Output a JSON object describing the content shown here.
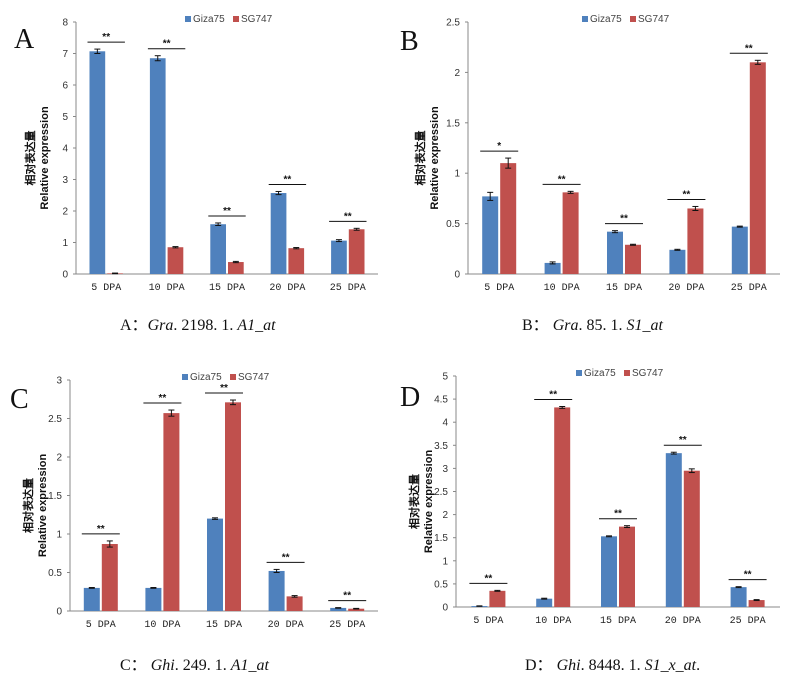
{
  "series_colors": {
    "Giza75": "#4f81bd",
    "SG747": "#c0504d"
  },
  "chart_data": [
    {
      "panel": "A",
      "type": "bar",
      "categories": [
        "5 DPA",
        "10 DPA",
        "15 DPA",
        "20 DPA",
        "25 DPA"
      ],
      "series": [
        {
          "name": "Giza75",
          "values": [
            7.07,
            6.85,
            1.58,
            2.57,
            1.06
          ],
          "errors": [
            0.07,
            0.08,
            0.04,
            0.05,
            0.03
          ]
        },
        {
          "name": "SG747",
          "values": [
            0.02,
            0.85,
            0.38,
            0.82,
            1.42
          ],
          "errors": [
            0.01,
            0.02,
            0.02,
            0.02,
            0.03
          ]
        }
      ],
      "significance": [
        "**",
        "**",
        "**",
        "**",
        "**"
      ],
      "ylabel_cn": "相对表达量",
      "ylabel_en": "Relative expression",
      "ylim": [
        0,
        8
      ],
      "yticks": [
        0,
        1,
        2,
        3,
        4,
        5,
        6,
        7,
        8
      ],
      "ytick_labels": [
        "0",
        "1",
        "2",
        "3",
        "4",
        "5",
        "6",
        "7",
        "8"
      ],
      "legend": "top",
      "grid": false,
      "caption": {
        "prefix": "A：",
        "name": "Gra",
        "middle": ". 2198. 1. ",
        "suffix_it": "A1_at",
        "tail": ""
      }
    },
    {
      "panel": "B",
      "type": "bar",
      "categories": [
        "5 DPA",
        "10 DPA",
        "15 DPA",
        "20 DPA",
        "25 DPA"
      ],
      "series": [
        {
          "name": "Giza75",
          "values": [
            0.77,
            0.11,
            0.42,
            0.24,
            0.47
          ],
          "errors": [
            0.04,
            0.01,
            0.01,
            0.005,
            0.005
          ]
        },
        {
          "name": "SG747",
          "values": [
            1.1,
            0.81,
            0.29,
            0.65,
            2.1
          ],
          "errors": [
            0.05,
            0.01,
            0.005,
            0.02,
            0.02
          ]
        }
      ],
      "significance": [
        "*",
        "**",
        "**",
        "**",
        "**"
      ],
      "ylabel_cn": "相对表达量",
      "ylabel_en": "Relative expression",
      "ylim": [
        0,
        2.5
      ],
      "yticks": [
        0,
        0.5,
        1,
        1.5,
        2,
        2.5
      ],
      "ytick_labels": [
        "0",
        "0.5",
        "1",
        "1.5",
        "2",
        "2.5"
      ],
      "legend": "top",
      "grid": false,
      "caption": {
        "prefix": "B： ",
        "name": "Gra",
        "middle": ". 85. 1. ",
        "suffix_it": "S1_at",
        "tail": ""
      }
    },
    {
      "panel": "C",
      "type": "bar",
      "categories": [
        "5 DPA",
        "10 DPA",
        "15 DPA",
        "20 DPA",
        "25 DPA"
      ],
      "series": [
        {
          "name": "Giza75",
          "values": [
            0.3,
            0.3,
            1.2,
            0.52,
            0.04
          ],
          "errors": [
            0.005,
            0.005,
            0.01,
            0.02,
            0.004
          ]
        },
        {
          "name": "SG747",
          "values": [
            0.87,
            2.57,
            2.71,
            0.19,
            0.03
          ],
          "errors": [
            0.04,
            0.04,
            0.03,
            0.01,
            0.004
          ]
        }
      ],
      "significance": [
        "**",
        "**",
        "**",
        "**",
        "**"
      ],
      "ylabel_cn": "相对表达量",
      "ylabel_en": "Relative expression",
      "ylim": [
        0,
        3
      ],
      "yticks": [
        0,
        0.5,
        1,
        1.5,
        2,
        2.5,
        3
      ],
      "ytick_labels": [
        "0",
        "0.5",
        "1",
        "1.5",
        "2",
        "2.5",
        "3"
      ],
      "legend": "top",
      "grid": false,
      "caption": {
        "prefix": "C： ",
        "name": "Ghi",
        "middle": ". 249. 1. ",
        "suffix_it": "A1_at",
        "tail": ""
      }
    },
    {
      "panel": "D",
      "type": "bar",
      "categories": [
        "5 DPA",
        "10 DPA",
        "15 DPA",
        "20 DPA",
        "25 DPA"
      ],
      "series": [
        {
          "name": "Giza75",
          "values": [
            0.02,
            0.18,
            1.53,
            3.33,
            0.43
          ],
          "errors": [
            0.005,
            0.01,
            0.01,
            0.02,
            0.01
          ]
        },
        {
          "name": "SG747",
          "values": [
            0.35,
            4.32,
            1.74,
            2.95,
            0.15
          ],
          "errors": [
            0.01,
            0.02,
            0.02,
            0.04,
            0.01
          ]
        }
      ],
      "significance": [
        "**",
        "**",
        "**",
        "**",
        "**"
      ],
      "ylabel_cn": "相对表达量",
      "ylabel_en": "Relative expression",
      "ylim": [
        0,
        5
      ],
      "yticks": [
        0,
        0.5,
        1,
        1.5,
        2,
        2.5,
        3,
        3.5,
        4,
        4.5,
        5
      ],
      "ytick_labels": [
        "0",
        "0.5",
        "1",
        "1.5",
        "2",
        "2.5",
        "3",
        "3.5",
        "4",
        "4.5",
        "5"
      ],
      "legend": "top",
      "grid": false,
      "caption": {
        "prefix": "D： ",
        "name": "Ghi",
        "middle": ". 8448. 1. ",
        "suffix_it": "S1_x_at",
        "tail": "."
      }
    }
  ]
}
